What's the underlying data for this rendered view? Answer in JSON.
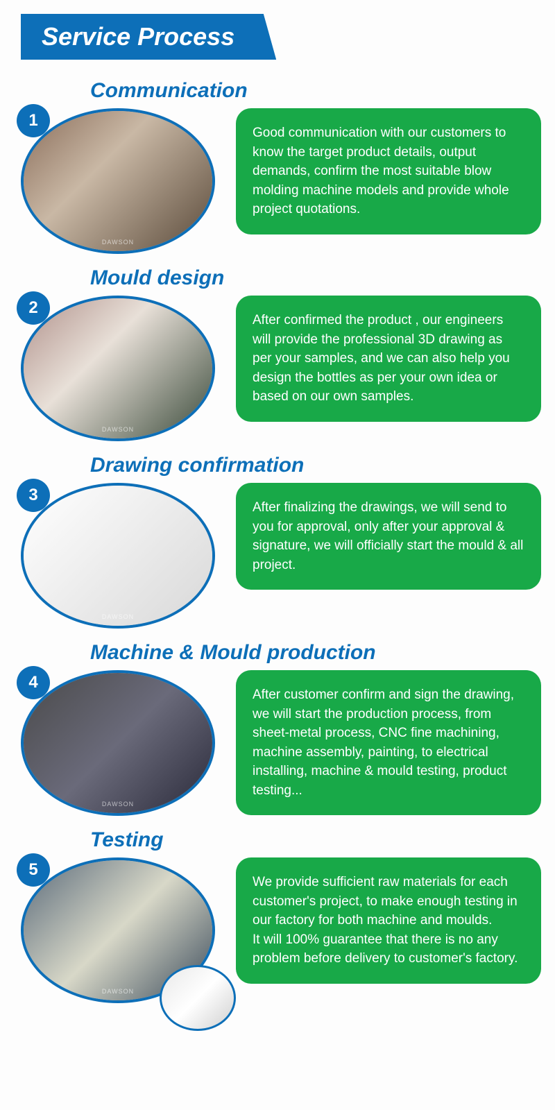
{
  "banner_title": "Service Process",
  "colors": {
    "primary_blue": "#0d6fb8",
    "accent_green": "#18a948",
    "text_white": "#ffffff",
    "page_bg": "#fdfdfd"
  },
  "typography": {
    "banner_fontsize": 36,
    "title_fontsize": 30,
    "body_fontsize": 19,
    "badge_fontsize": 24
  },
  "watermark": "DAWSON",
  "steps": [
    {
      "num": "1",
      "title": "Communication",
      "desc": "Good communication with our customers to know the target product details, output demands, confirm the most suitable blow molding machine models and provide whole project quotations.",
      "image_hint": "meeting-photo",
      "ph_class": "ph1"
    },
    {
      "num": "2",
      "title": "Mould design",
      "desc": "After confirmed the product , our engineers will provide the professional 3D drawing as per your samples, and we can also help you design the bottles as per your own idea or based on our own samples.",
      "image_hint": "engineer-cad-photo",
      "ph_class": "ph2"
    },
    {
      "num": "3",
      "title": "Drawing confirmation",
      "desc": "After finalizing the drawings, we will send to you for approval, only after your approval & signature, we will officially start the mould & all project.",
      "image_hint": "technical-drawing",
      "ph_class": "ph3"
    },
    {
      "num": "4",
      "title": "Machine & Mould production",
      "desc": "After customer confirm and sign the drawing, we will start the production process, from sheet-metal process, CNC fine machining, machine assembly, painting, to electrical installing, machine & mould testing, product testing...",
      "image_hint": "production-photo",
      "ph_class": "ph4"
    },
    {
      "num": "5",
      "title": "Testing",
      "desc": "We provide sufficient raw materials for each customer's project, to make enough testing in our factory for both machine and moulds.\nIt will 100% guarantee that there is no any problem before delivery to customer's factory.",
      "image_hint": "testing-machine-photo",
      "ph_class": "ph5",
      "extra_circle": true
    }
  ]
}
